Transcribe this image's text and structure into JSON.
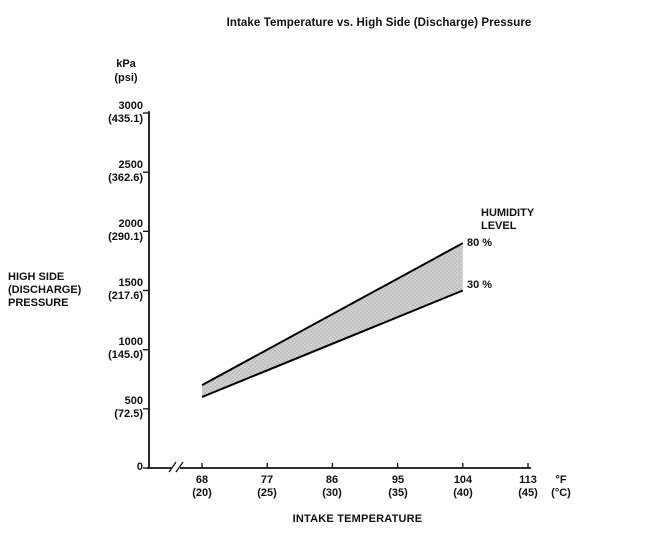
{
  "title": "Intake Temperature vs. High Side (Discharge) Pressure",
  "y_axis": {
    "unit_line1": "kPa",
    "unit_line2": "(psi)",
    "title_line1": "HIGH SIDE",
    "title_line2": "(DISCHARGE)",
    "title_line3": "PRESSURE",
    "ticks": [
      {
        "kpa": "3000",
        "psi": "(435.1)"
      },
      {
        "kpa": "2500",
        "psi": "(362.6)"
      },
      {
        "kpa": "2000",
        "psi": "(290.1)"
      },
      {
        "kpa": "1500",
        "psi": "(217.6)"
      },
      {
        "kpa": "1000",
        "psi": "(145.0)"
      },
      {
        "kpa": "500",
        "psi": "(72.5)"
      },
      {
        "kpa": "0",
        "psi": ""
      }
    ]
  },
  "x_axis": {
    "title": "INTAKE TEMPERATURE",
    "unit_line1": "°F",
    "unit_line2": "(°C)",
    "ticks": [
      {
        "f": "68",
        "c": "(20)"
      },
      {
        "f": "77",
        "c": "(25)"
      },
      {
        "f": "86",
        "c": "(30)"
      },
      {
        "f": "95",
        "c": "(35)"
      },
      {
        "f": "104",
        "c": "(40)"
      },
      {
        "f": "113",
        "c": "(45)"
      }
    ]
  },
  "legend": {
    "title_line1": "HUMIDITY",
    "title_line2": "LEVEL",
    "upper_label": "80 %",
    "lower_label": "30 %"
  },
  "colors": {
    "background": "#ffffff",
    "text": "#111111",
    "axis": "#111111",
    "band_fill": "#cfcfcf",
    "band_edge": "#000000"
  },
  "chart_data": {
    "type": "area",
    "title": "Intake Temperature vs. High Side (Discharge) Pressure",
    "xlabel": "INTAKE TEMPERATURE",
    "ylabel": "HIGH SIDE (DISCHARGE) PRESSURE",
    "x_unit": "°F (°C)",
    "y_unit": "kPa (psi)",
    "xlim_f": [
      68,
      113
    ],
    "ylim_kpa": [
      0,
      3000
    ],
    "x_ticks_f": [
      68,
      77,
      86,
      95,
      104,
      113
    ],
    "x_ticks_c": [
      20,
      25,
      30,
      35,
      40,
      45
    ],
    "y_ticks_kpa": [
      0,
      500,
      1000,
      1500,
      2000,
      2500,
      3000
    ],
    "y_ticks_psi": [
      0,
      72.5,
      145.0,
      217.6,
      290.1,
      362.6,
      435.1
    ],
    "x_axis_break": true,
    "grid": false,
    "legend_title": "HUMIDITY LEVEL",
    "band": {
      "x_f": [
        68,
        104
      ],
      "series": [
        {
          "name": "80 %",
          "humidity_percent": 80,
          "values_kpa": [
            700,
            1900
          ]
        },
        {
          "name": "30 %",
          "humidity_percent": 30,
          "values_kpa": [
            600,
            1500
          ]
        }
      ]
    }
  }
}
